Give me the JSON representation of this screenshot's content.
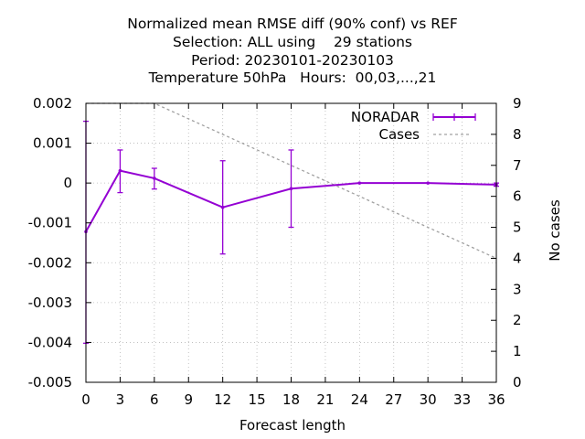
{
  "title_lines": [
    "Normalized mean RMSE diff (90% conf) vs REF",
    "Selection: ALL using    29 stations",
    "Period: 20230101-20230103",
    "Temperature 50hPa   Hours:  00,03,...,21"
  ],
  "chart_data": {
    "type": "line",
    "xlabel": "Forecast length",
    "ylabel": "",
    "y2label": "No cases",
    "xlim": [
      0,
      36
    ],
    "ylim": [
      -0.005,
      0.002
    ],
    "y2lim": [
      0,
      9
    ],
    "x_ticks": [
      "0",
      "3",
      "6",
      "9",
      "12",
      "15",
      "18",
      "21",
      "24",
      "27",
      "30",
      "33",
      "36"
    ],
    "y_ticks": [
      "0.002",
      "0.001",
      "0",
      "-0.001",
      "-0.002",
      "-0.003",
      "-0.004",
      "-0.005"
    ],
    "y2_ticks": [
      "9",
      "8",
      "7",
      "6",
      "5",
      "4",
      "3",
      "2",
      "1",
      "0"
    ],
    "grid": true,
    "legend": "top-right",
    "series": [
      {
        "name": "NORADAR",
        "color": "#9400d3",
        "style": "errorbars",
        "axis": "y",
        "x": [
          0,
          3,
          6,
          12,
          18,
          24,
          30,
          36
        ],
        "y": [
          -0.00122,
          0.00031,
          0.00012,
          -0.00061,
          -0.00014,
          0.0,
          0.0,
          -4e-05
        ],
        "y_low": [
          -0.00402,
          -0.00024,
          -0.00015,
          -0.00178,
          -0.00111,
          0.0,
          0.0,
          -8e-05
        ],
        "y_high": [
          0.00155,
          0.00083,
          0.00037,
          0.00056,
          0.00083,
          0.0,
          0.0,
          0.0
        ]
      },
      {
        "name": "Cases",
        "color": "#a0a0a0",
        "style": "dashed",
        "axis": "y2",
        "x": [
          0,
          6,
          36
        ],
        "y": [
          9,
          9,
          4
        ]
      }
    ]
  }
}
